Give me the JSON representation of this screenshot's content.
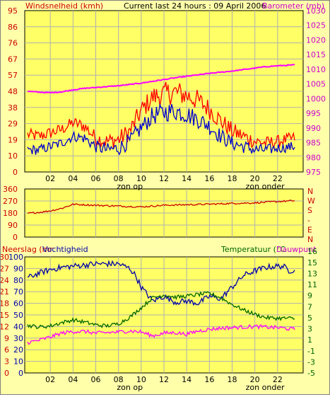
{
  "header": {
    "left_label": "Windsnelheid (kmh)",
    "center_label": "Current last 24 hours : 09 April 2006",
    "right_label": "Barometer (mb)"
  },
  "colors": {
    "background": "#ffffaa",
    "plot_area": "#ffff66",
    "grid": "#b0b0b0",
    "wind": "#0000cc",
    "gust": "#ff0000",
    "barometer": "#ff00ff",
    "direction": "#cc0000",
    "humidity": "#0000aa",
    "temperature": "#006600",
    "dewpoint": "#ff00ff",
    "label_red": "#cc0000",
    "label_green": "#006600",
    "label_magenta": "#cc00cc"
  },
  "x_axis": {
    "tick_labels": [
      "02",
      "04",
      "06",
      "08",
      "10",
      "12",
      "14",
      "16",
      "18",
      "20",
      "22"
    ],
    "sunrise_label": "zon op",
    "sunset_label": "zon onder"
  },
  "chart_data": [
    {
      "type": "line",
      "left_axis_ticks": [
        "0",
        "10",
        "19",
        "29",
        "38",
        "48",
        "57",
        "67",
        "76",
        "86",
        "95"
      ],
      "right_axis_ticks": [
        "975",
        "980",
        "985",
        "990",
        "995",
        "1000",
        "1005",
        "1010",
        "1015",
        "1020",
        "1025",
        "1030"
      ],
      "x_range_hours": [
        0,
        24
      ],
      "y_left_range": [
        0,
        95
      ],
      "y_right_range": [
        975,
        1030
      ],
      "series": [
        {
          "key": "gust",
          "axis": "left",
          "x": [
            0,
            1,
            2,
            3,
            4,
            5,
            6,
            7,
            8,
            9,
            10,
            11,
            12,
            13,
            14,
            15,
            16,
            17,
            18,
            19,
            20,
            21,
            22,
            23.5
          ],
          "y": [
            22,
            21,
            23,
            25,
            29,
            27,
            20,
            18,
            19,
            24,
            36,
            44,
            46,
            47,
            45,
            42,
            37,
            30,
            24,
            21,
            18,
            17,
            18,
            20
          ]
        },
        {
          "key": "wind",
          "axis": "left",
          "x": [
            0,
            1,
            2,
            3,
            4,
            5,
            6,
            7,
            8,
            9,
            10,
            11,
            12,
            13,
            14,
            15,
            16,
            17,
            18,
            19,
            20,
            21,
            22,
            23.5
          ],
          "y": [
            13,
            13,
            15,
            17,
            21,
            20,
            15,
            13,
            14,
            18,
            26,
            33,
            35,
            36,
            34,
            31,
            27,
            21,
            17,
            15,
            13,
            13,
            14,
            15
          ]
        },
        {
          "key": "barometer",
          "axis": "right",
          "x": [
            0,
            1,
            2,
            3,
            4,
            5,
            6,
            7,
            8,
            9,
            10,
            11,
            12,
            13,
            14,
            15,
            16,
            17,
            18,
            19,
            20,
            21,
            22,
            23.5
          ],
          "y": [
            1002.5,
            1002.2,
            1002.0,
            1002.3,
            1003.0,
            1003.5,
            1003.8,
            1004.1,
            1004.4,
            1004.8,
            1005.3,
            1005.9,
            1006.5,
            1007.1,
            1007.6,
            1008.1,
            1008.6,
            1009.0,
            1009.4,
            1009.9,
            1010.4,
            1010.9,
            1011.2,
            1011.5
          ]
        }
      ]
    },
    {
      "type": "line",
      "left_axis_ticks": [
        "0",
        "90",
        "180",
        "270",
        "360"
      ],
      "right_axis_ticks": [
        "N",
        "E",
        "S",
        "W",
        "N"
      ],
      "right_axis_extra": "-",
      "x_range_hours": [
        0,
        24
      ],
      "y_left_range": [
        0,
        360
      ],
      "series": [
        {
          "key": "direction",
          "axis": "left",
          "x": [
            0,
            1,
            2,
            3,
            4,
            6,
            8,
            10,
            12,
            14,
            16,
            18,
            20,
            22,
            23.5
          ],
          "y": [
            178,
            185,
            196,
            215,
            245,
            238,
            232,
            226,
            238,
            242,
            246,
            252,
            256,
            266,
            272
          ]
        }
      ]
    },
    {
      "type": "line",
      "header_left_label": "Neerslag (mr",
      "header_left_label_2": "Vochtigheid",
      "header_right_label": "Temperatuur (°C",
      "header_right_label_2": "Dauwpunt",
      "precip_axis_ticks": [
        "0",
        "3",
        "6",
        "9",
        "12",
        "15",
        "18",
        "21",
        "24",
        "27",
        "30"
      ],
      "humidity_axis_ticks": [
        "0",
        "10",
        "20",
        "30",
        "40",
        "50",
        "60",
        "70",
        "80",
        "90",
        "100"
      ],
      "right_axis_ticks": [
        "-5",
        "-3",
        "-1",
        "1",
        "3",
        "5",
        "7",
        "9",
        "11",
        "13",
        "15",
        "16"
      ],
      "x_range_hours": [
        0,
        24
      ],
      "y_humidity_range": [
        0,
        100
      ],
      "y_temperature_range": [
        -5,
        16
      ],
      "series": [
        {
          "key": "humidity",
          "axis": "humidity",
          "x": [
            0,
            1,
            2,
            3,
            4,
            5,
            6,
            7,
            8,
            9,
            9.5,
            10,
            11,
            12,
            13,
            14,
            15,
            16,
            17,
            18,
            19,
            20,
            21,
            22,
            22.5,
            23,
            23.5
          ],
          "y": [
            82,
            86,
            89,
            91,
            92,
            93,
            94,
            94,
            94,
            90,
            84,
            74,
            62,
            66,
            61,
            62,
            60,
            66,
            64,
            74,
            84,
            88,
            91,
            92,
            92,
            88,
            89
          ]
        },
        {
          "key": "temperature",
          "axis": "temperature",
          "x": [
            0,
            1,
            2,
            3,
            4,
            5,
            6,
            7,
            8,
            9,
            10,
            11,
            12,
            13,
            14,
            15,
            16,
            17,
            18,
            19,
            20,
            21,
            22,
            23,
            23.5
          ],
          "y": [
            3.6,
            3.3,
            3.5,
            4.1,
            4.6,
            4.2,
            3.7,
            3.5,
            3.9,
            5.1,
            6.8,
            8.6,
            9.1,
            8.7,
            8.9,
            9.2,
            9.4,
            8.6,
            7.4,
            6.4,
            5.6,
            5.0,
            4.9,
            4.9,
            4.8
          ]
        },
        {
          "key": "dewpoint",
          "axis": "temperature",
          "x": [
            0,
            1,
            2,
            3,
            4,
            5,
            6,
            7,
            8,
            9,
            10,
            11,
            12,
            13,
            14,
            15,
            16,
            17,
            18,
            19,
            20,
            21,
            22,
            23,
            23.5
          ],
          "y": [
            0.5,
            0.9,
            1.5,
            2.2,
            2.5,
            2.5,
            2.2,
            2.3,
            2.4,
            2.6,
            2.4,
            1.7,
            2.2,
            2.3,
            2.0,
            2.6,
            2.9,
            3.1,
            3.2,
            3.3,
            3.4,
            3.3,
            3.2,
            3.0,
            2.9
          ]
        }
      ]
    }
  ]
}
